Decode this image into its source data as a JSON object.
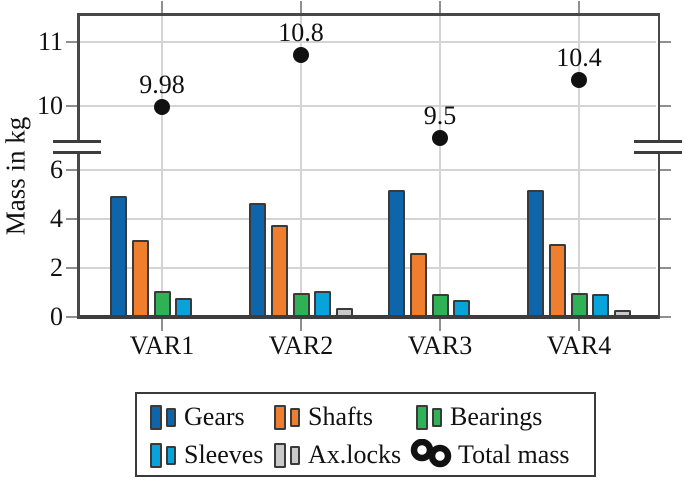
{
  "chart_data": {
    "type": "bar",
    "title": "",
    "xlabel": "",
    "ylabel": "Mass in kg",
    "categories": [
      "VAR1",
      "VAR2",
      "VAR3",
      "VAR4"
    ],
    "series": [
      {
        "name": "Gears",
        "color": "#0f65a9",
        "values": [
          4.95,
          4.65,
          5.2,
          5.2
        ]
      },
      {
        "name": "Shafts",
        "color": "#ef7f2e",
        "values": [
          3.15,
          3.75,
          2.6,
          3.0
        ]
      },
      {
        "name": "Bearings",
        "color": "#2fb156",
        "values": [
          1.05,
          1.0,
          0.95,
          1.0
        ]
      },
      {
        "name": "Sleeves",
        "color": "#07a3da",
        "values": [
          0.78,
          1.05,
          0.68,
          0.93
        ]
      },
      {
        "name": "Ax.locks",
        "color": "#c9c9c9",
        "values": [
          0.05,
          0.35,
          0.07,
          0.27
        ]
      }
    ],
    "scatter_series": {
      "name": "Total mass",
      "color": "#111111",
      "values": [
        9.98,
        10.8,
        9.5,
        10.4
      ],
      "labels": [
        "9.98",
        "10.8",
        "9.5",
        "10.4"
      ]
    },
    "axis": {
      "broken_y_axis": true,
      "lower_tick_labels": [
        "0",
        "2",
        "4",
        "6"
      ],
      "lower_tick_values": [
        0,
        2,
        4,
        6
      ],
      "upper_tick_labels": [
        "10",
        "11"
      ],
      "upper_tick_values": [
        10,
        11
      ],
      "lower_range": [
        0,
        7
      ],
      "upper_range": [
        9.4,
        11.45
      ],
      "grid": true
    },
    "legend": {
      "position": "below",
      "entries": [
        "Gears",
        "Shafts",
        "Bearings",
        "Sleeves",
        "Ax.locks",
        "Total mass"
      ]
    },
    "style_colors": {
      "bar_outline": "#3a3a3a",
      "axis_frame": "#474747",
      "gridline": "#d4d4d4",
      "tick": "#8f8f8f",
      "text": "#111111"
    }
  }
}
